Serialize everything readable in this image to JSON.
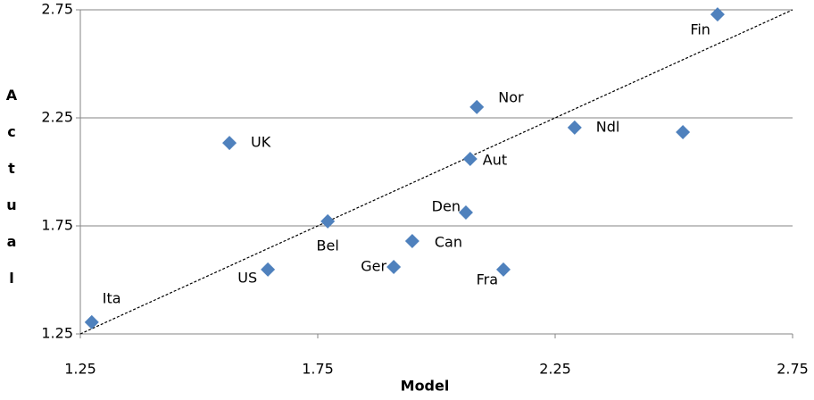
{
  "chart_data": {
    "type": "scatter",
    "x_label": "Model",
    "y_label": "Actual",
    "labels": [
      "Ita",
      "UK",
      "US",
      "Bel",
      "Ger",
      "Can",
      "Den",
      "Aut",
      "Nor",
      "Fra",
      "Ndl",
      null,
      "Fin"
    ],
    "x": [
      1.274,
      1.564,
      1.645,
      1.771,
      1.91,
      1.949,
      2.062,
      2.071,
      2.085,
      2.141,
      2.291,
      2.519,
      2.592
    ],
    "y": [
      1.304,
      2.134,
      1.548,
      1.771,
      1.56,
      1.68,
      1.812,
      2.06,
      2.3,
      1.548,
      2.205,
      2.184,
      2.729
    ],
    "color": "#4f81bd",
    "xlim": [
      1.25,
      2.75
    ],
    "ylim": [
      1.25,
      2.75
    ],
    "xticks": [
      1.25,
      1.75,
      2.25,
      2.75
    ],
    "yticks": [
      1.25,
      1.75,
      2.25,
      2.75
    ],
    "grid": true
  }
}
